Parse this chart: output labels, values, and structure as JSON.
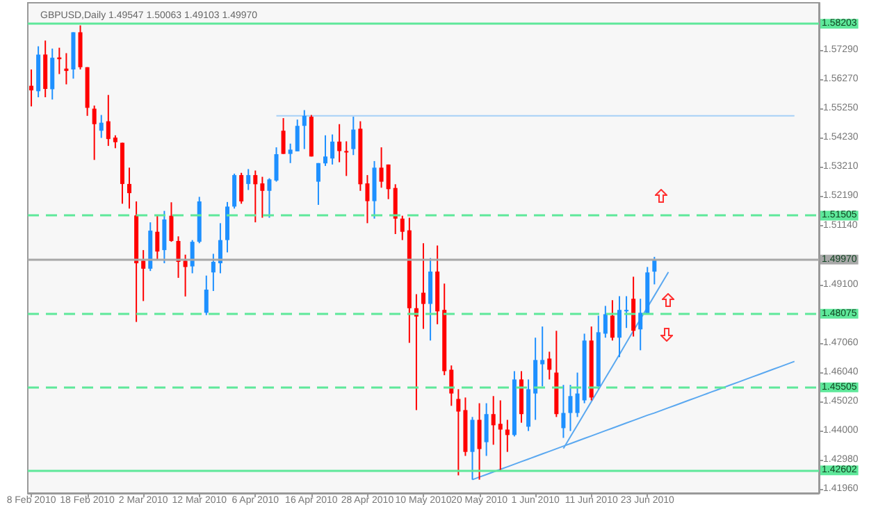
{
  "chart_data": {
    "type": "candlestick",
    "title": "GBPUSD,Daily 1.49547 1.50063 1.49103 1.49970",
    "categories": [
      "8 Feb 2010",
      null,
      null,
      null,
      null,
      null,
      null,
      null,
      "18 Feb 2010",
      null,
      null,
      null,
      null,
      null,
      null,
      null,
      "2 Mar 2010",
      null,
      null,
      null,
      null,
      null,
      null,
      null,
      "12 Mar 2010",
      null,
      null,
      null,
      null,
      null,
      null,
      null,
      "6 Apr 2010",
      null,
      null,
      null,
      null,
      null,
      null,
      null,
      "16 Apr 2010",
      null,
      null,
      null,
      null,
      null,
      null,
      null,
      "28 Apr 2010",
      null,
      null,
      null,
      null,
      null,
      null,
      null,
      "10 May 2010",
      null,
      null,
      null,
      null,
      null,
      null,
      null,
      "20 May 2010",
      null,
      null,
      null,
      null,
      null,
      null,
      null,
      "1 Jun 2010",
      null,
      null,
      null,
      null,
      null,
      null,
      null,
      "11 Jun 2010",
      null,
      null,
      null,
      null,
      null,
      null,
      null,
      "23 Jun 2010",
      null,
      null,
      null,
      null,
      null,
      null,
      null,
      null,
      null,
      null,
      null,
      null,
      null,
      null,
      null,
      null,
      null,
      null,
      null,
      null,
      null,
      null,
      null,
      null
    ],
    "ohlc": [
      [
        1.5604,
        1.5661,
        1.5532,
        1.5588
      ],
      [
        1.5585,
        1.5742,
        1.5564,
        1.5713
      ],
      [
        1.5713,
        1.5762,
        1.5564,
        1.5593
      ],
      [
        1.5592,
        1.5734,
        1.5556,
        1.5702
      ],
      [
        1.5703,
        1.5737,
        1.5645,
        1.5697
      ],
      [
        1.5664,
        1.5718,
        1.5609,
        1.5656
      ],
      [
        1.5661,
        1.5791,
        1.5629,
        1.5791
      ],
      [
        1.5791,
        1.5815,
        1.5661,
        1.5669
      ],
      [
        1.5669,
        1.5669,
        1.5499,
        1.5527
      ],
      [
        1.5524,
        1.5535,
        1.5345,
        1.547
      ],
      [
        1.5447,
        1.5502,
        1.5422,
        1.5475
      ],
      [
        1.548,
        1.5572,
        1.5394,
        1.5418
      ],
      [
        1.5423,
        1.5431,
        1.5386,
        1.5407
      ],
      [
        1.5405,
        1.5405,
        1.5192,
        1.5261
      ],
      [
        1.5261,
        1.5318,
        1.5175,
        1.5229
      ],
      [
        1.5151,
        1.52,
        1.4779,
        1.4984
      ],
      [
        1.4993,
        1.503,
        1.4852,
        1.4965
      ],
      [
        1.4965,
        1.5127,
        1.4957,
        1.5098
      ],
      [
        1.5094,
        1.5151,
        1.4997,
        1.5025
      ],
      [
        1.503,
        1.5167,
        1.4984,
        1.5137
      ],
      [
        1.515,
        1.5197,
        1.5059,
        1.5062
      ],
      [
        1.5062,
        1.5078,
        1.4933,
        1.4989
      ],
      [
        1.4993,
        1.5014,
        1.4868,
        1.4971
      ],
      [
        1.4973,
        1.5065,
        1.4949,
        1.5059
      ],
      [
        1.5059,
        1.5216,
        1.5054,
        1.52
      ],
      [
        1.4811,
        1.4941,
        1.4803,
        1.4892
      ],
      [
        1.4952,
        1.5017,
        1.4887,
        1.4989
      ],
      [
        1.4984,
        1.5124,
        1.4949,
        1.5065
      ],
      [
        1.5065,
        1.5198,
        1.5022,
        1.5182
      ],
      [
        1.5182,
        1.5297,
        1.5175,
        1.5292
      ],
      [
        1.5292,
        1.53,
        1.5192,
        1.52
      ],
      [
        1.5261,
        1.5313,
        1.524,
        1.5292
      ],
      [
        1.5292,
        1.5308,
        1.5127,
        1.526
      ],
      [
        1.5263,
        1.5286,
        1.5143,
        1.5237
      ],
      [
        1.5237,
        1.5281,
        1.5143,
        1.5277
      ],
      [
        1.5273,
        1.5389,
        1.5269,
        1.5365
      ],
      [
        1.5447,
        1.5491,
        1.5366,
        1.5366
      ],
      [
        1.5366,
        1.5402,
        1.5334,
        1.5381
      ],
      [
        1.5375,
        1.5486,
        1.5375,
        1.5464
      ],
      [
        1.5464,
        1.5519,
        1.5383,
        1.5499
      ],
      [
        1.5496,
        1.5502,
        1.5357,
        1.5357
      ],
      [
        1.5269,
        1.5334,
        1.5188,
        1.5334
      ],
      [
        1.5333,
        1.5431,
        1.5324,
        1.5357
      ],
      [
        1.535,
        1.5434,
        1.5329,
        1.5409
      ],
      [
        1.5409,
        1.547,
        1.5337,
        1.5376
      ],
      [
        1.5376,
        1.541,
        1.5289,
        1.5373
      ],
      [
        1.5383,
        1.5496,
        1.5362,
        1.5451
      ],
      [
        1.5454,
        1.548,
        1.5237,
        1.526
      ],
      [
        1.5263,
        1.5292,
        1.5124,
        1.5201
      ],
      [
        1.5201,
        1.5341,
        1.514,
        1.5318
      ],
      [
        1.5318,
        1.5389,
        1.5248,
        1.5269
      ],
      [
        1.5329,
        1.5329,
        1.5208,
        1.5243
      ],
      [
        1.5247,
        1.526,
        1.5086,
        1.514
      ],
      [
        1.514,
        1.515,
        1.5065,
        1.5094
      ],
      [
        1.5099,
        1.5143,
        1.4706,
        1.4827
      ],
      [
        1.4827,
        1.4876,
        1.4471,
        1.4798
      ],
      [
        1.4881,
        1.5054,
        1.4755,
        1.4842
      ],
      [
        1.4842,
        1.5002,
        1.4714,
        1.4955
      ],
      [
        1.4955,
        1.5046,
        1.4771,
        1.4816
      ],
      [
        1.4821,
        1.4913,
        1.4593,
        1.4607
      ],
      [
        1.4612,
        1.4627,
        1.4486,
        1.4529
      ],
      [
        1.451,
        1.4544,
        1.4243,
        1.4466
      ],
      [
        1.4471,
        1.4515,
        1.4311,
        1.4325
      ],
      [
        1.4325,
        1.4447,
        1.4228,
        1.4437
      ],
      [
        1.4437,
        1.4495,
        1.4228,
        1.4335
      ],
      [
        1.4359,
        1.4495,
        1.4311,
        1.4457
      ],
      [
        1.4457,
        1.452,
        1.435,
        1.4418
      ],
      [
        1.4423,
        1.4505,
        1.4257,
        1.4403
      ],
      [
        1.4403,
        1.4437,
        1.4325,
        1.4384
      ],
      [
        1.4384,
        1.4607,
        1.4379,
        1.4578
      ],
      [
        1.4578,
        1.4607,
        1.4427,
        1.4457
      ],
      [
        1.4413,
        1.4578,
        1.4398,
        1.4544
      ],
      [
        1.4529,
        1.4724,
        1.4437,
        1.4646
      ],
      [
        1.4631,
        1.4763,
        1.4554,
        1.4646
      ],
      [
        1.4651,
        1.4675,
        1.4578,
        1.4612
      ],
      [
        1.4602,
        1.4748,
        1.4447,
        1.4457
      ],
      [
        1.4408,
        1.4559,
        1.4374,
        1.4461
      ],
      [
        1.4461,
        1.4559,
        1.4398,
        1.452
      ],
      [
        1.4461,
        1.4602,
        1.4447,
        1.4529
      ],
      [
        1.4505,
        1.4738,
        1.4495,
        1.4714
      ],
      [
        1.4714,
        1.4763,
        1.4505,
        1.4515
      ],
      [
        1.4554,
        1.4801,
        1.4544,
        1.4743
      ],
      [
        1.4738,
        1.4835,
        1.4724,
        1.4806
      ],
      [
        1.4801,
        1.4855,
        1.4714,
        1.4724
      ],
      [
        1.4724,
        1.4869,
        1.4656,
        1.4821
      ],
      [
        1.4816,
        1.4869,
        1.4758,
        1.4821
      ],
      [
        1.486,
        1.4937,
        1.4728,
        1.4748
      ],
      [
        1.4753,
        1.486,
        1.468,
        1.4811
      ],
      [
        1.4806,
        1.4971,
        1.4806,
        1.4952
      ],
      [
        1.49547,
        1.50063,
        1.49103,
        1.4997
      ],
      null,
      null,
      null,
      null,
      null,
      null,
      null,
      null,
      null,
      null,
      null,
      null,
      null,
      null,
      null,
      null,
      null,
      null,
      null,
      null,
      null,
      null,
      null
    ],
    "colors": [
      "#ff0000",
      "#1e90ff",
      "#ff0000",
      "#1e90ff",
      "#ff0000",
      "#ff0000",
      "#1e90ff",
      "#ff0000",
      "#ff0000",
      "#ff0000",
      "#1e90ff",
      "#ff0000",
      "#ff0000",
      "#ff0000",
      "#ff0000",
      "#ff0000",
      "#ff0000",
      "#1e90ff",
      "#ff0000",
      "#1e90ff",
      "#ff0000",
      "#ff0000",
      "#ff0000",
      "#1e90ff",
      "#1e90ff",
      "#1e90ff",
      "#1e90ff",
      "#1e90ff",
      "#1e90ff",
      "#1e90ff",
      "#ff0000",
      "#1e90ff",
      "#ff0000",
      "#ff0000",
      "#1e90ff",
      "#1e90ff",
      "#ff0000",
      "#1e90ff",
      "#1e90ff",
      "#1e90ff",
      "#ff0000",
      "#1e90ff",
      "#1e90ff",
      "#1e90ff",
      "#ff0000",
      "#ff0000",
      "#1e90ff",
      "#ff0000",
      "#ff0000",
      "#1e90ff",
      "#ff0000",
      "#ff0000",
      "#ff0000",
      "#ff0000",
      "#ff0000",
      "#ff0000",
      "#ff0000",
      "#1e90ff",
      "#ff0000",
      "#ff0000",
      "#ff0000",
      "#ff0000",
      "#ff0000",
      "#1e90ff",
      "#ff0000",
      "#1e90ff",
      "#ff0000",
      "#ff0000",
      "#ff0000",
      "#1e90ff",
      "#ff0000",
      "#1e90ff",
      "#1e90ff",
      "#1e90ff",
      "#ff0000",
      "#ff0000",
      "#1e90ff",
      "#1e90ff",
      "#1e90ff",
      "#1e90ff",
      "#ff0000",
      "#1e90ff",
      "#1e90ff",
      "#ff0000",
      "#1e90ff",
      "#1e90ff",
      "#ff0000",
      "#1e90ff",
      "#1e90ff",
      "#1e90ff",
      null,
      null,
      null,
      null,
      null,
      null,
      null,
      null,
      null,
      null,
      null,
      null,
      null,
      null,
      null,
      null,
      null,
      null,
      null,
      null,
      null,
      null,
      null
    ],
    "ylim": [
      1.4181,
      1.5894
    ],
    "yticks": [
      {
        "value": 1.5729,
        "label": "1.57290"
      },
      {
        "value": 1.5627,
        "label": "1.56270"
      },
      {
        "value": 1.5525,
        "label": "1.55250"
      },
      {
        "value": 1.5423,
        "label": "1.54230"
      },
      {
        "value": 1.5321,
        "label": "1.53210"
      },
      {
        "value": 1.5219,
        "label": "1.52190"
      },
      {
        "value": 1.5114,
        "label": "1.51140"
      },
      {
        "value": 1.491,
        "label": "1.49100"
      },
      {
        "value": 1.4706,
        "label": "1.47060"
      },
      {
        "value": 1.4604,
        "label": "1.46040"
      },
      {
        "value": 1.4502,
        "label": "1.45020"
      },
      {
        "value": 1.44,
        "label": "1.44000"
      },
      {
        "value": 1.4298,
        "label": "1.42980"
      },
      {
        "value": 1.4196,
        "label": "1.41960"
      }
    ],
    "ref_lines": [
      {
        "axis": "y",
        "value": 1.58203,
        "label": "1.58203",
        "color": "#5ee89a",
        "line_style": "solid"
      },
      {
        "axis": "y",
        "value": 1.51505,
        "label": "1.51505",
        "color": "#5ee89a",
        "line_style": "dashed"
      },
      {
        "axis": "y",
        "value": 1.4997,
        "label": "1.49970",
        "color": "#a8a8a8",
        "line_style": "solid"
      },
      {
        "axis": "y",
        "value": 1.48075,
        "label": "1.48075",
        "color": "#5ee89a",
        "line_style": "dashed"
      },
      {
        "axis": "y",
        "value": 1.45505,
        "label": "1.45505",
        "color": "#5ee89a",
        "line_style": "dashed"
      },
      {
        "axis": "y",
        "value": 1.42602,
        "label": "1.42602",
        "color": "#5ee89a",
        "line_style": "solid"
      }
    ],
    "series": [
      {
        "type": "line",
        "values": [
          null,
          null,
          null,
          null,
          null,
          null,
          null,
          null,
          null,
          null,
          null,
          null,
          null,
          null,
          null,
          null,
          null,
          null,
          null,
          null,
          null,
          null,
          null,
          null,
          null,
          null,
          null,
          null,
          null,
          null,
          null,
          null,
          null,
          null,
          null,
          1.5499,
          1.5499,
          1.5499,
          1.5499,
          1.5499,
          1.5499,
          1.5499,
          1.5499,
          1.5499,
          1.5499,
          1.5499,
          1.5499,
          1.5499,
          1.5499,
          1.5499,
          1.5499,
          1.5499,
          1.5499,
          1.5499,
          1.5499,
          1.5499,
          1.5499,
          1.5499,
          1.5499,
          1.5499,
          1.5499,
          1.5499,
          1.5499,
          1.5499,
          1.5499,
          1.5499,
          1.5499,
          1.5499,
          1.5499,
          1.5499,
          1.5499,
          1.5499,
          1.5499,
          1.5499,
          1.5499,
          1.5499,
          1.5499,
          1.5499,
          1.5499,
          1.5499,
          1.5499,
          1.5499,
          1.5499,
          1.5499,
          1.5499,
          1.5499,
          1.5499,
          1.5499,
          1.5499,
          1.5499,
          1.5499,
          1.5499,
          1.5499,
          1.5499,
          1.5499,
          1.5499,
          1.5499,
          1.5499,
          1.5499,
          1.5499,
          1.5499,
          1.5499,
          1.5499,
          1.5499,
          1.5499,
          1.5499,
          1.5499,
          1.5499,
          1.5499,
          1.5499,
          null,
          null,
          null
        ],
        "color": "#a6d0f7"
      },
      {
        "type": "line",
        "values": [
          null,
          null,
          null,
          null,
          null,
          null,
          null,
          null,
          null,
          null,
          null,
          null,
          null,
          null,
          null,
          null,
          null,
          null,
          null,
          null,
          null,
          null,
          null,
          null,
          null,
          null,
          null,
          null,
          null,
          null,
          null,
          null,
          null,
          null,
          null,
          null,
          null,
          null,
          null,
          null,
          null,
          null,
          null,
          null,
          null,
          null,
          null,
          null,
          null,
          null,
          null,
          null,
          null,
          null,
          null,
          null,
          null,
          null,
          null,
          null,
          null,
          null,
          null,
          1.4228,
          1.4237,
          1.4246,
          1.4255,
          1.4264,
          1.4273,
          1.4282,
          1.4291,
          1.43,
          1.4309,
          1.4318,
          1.4327,
          1.4336,
          1.4345,
          1.4354,
          1.4363,
          1.4372,
          1.4381,
          1.439,
          1.4399,
          1.4408,
          1.4417,
          1.4426,
          1.4435,
          1.4444,
          1.4453,
          1.4461,
          1.447,
          1.4479,
          1.4488,
          1.4497,
          1.4506,
          1.4515,
          1.4524,
          1.4533,
          1.4542,
          1.4551,
          1.456,
          1.4569,
          1.4578,
          1.4587,
          1.4596,
          1.4605,
          1.4614,
          1.4623,
          1.4632,
          1.4641,
          null,
          null,
          null
        ],
        "color": "#5aa8f0"
      },
      {
        "type": "line",
        "values": [
          null,
          null,
          null,
          null,
          null,
          null,
          null,
          null,
          null,
          null,
          null,
          null,
          null,
          null,
          null,
          null,
          null,
          null,
          null,
          null,
          null,
          null,
          null,
          null,
          null,
          null,
          null,
          null,
          null,
          null,
          null,
          null,
          null,
          null,
          null,
          null,
          null,
          null,
          null,
          null,
          null,
          null,
          null,
          null,
          null,
          null,
          null,
          null,
          null,
          null,
          null,
          null,
          null,
          null,
          null,
          null,
          null,
          null,
          null,
          null,
          null,
          null,
          null,
          null,
          null,
          null,
          null,
          null,
          null,
          null,
          null,
          null,
          null,
          null,
          null,
          null,
          1.4337,
          1.4378,
          1.4419,
          1.446,
          1.4501,
          1.4542,
          1.4583,
          1.4624,
          1.4665,
          1.4707,
          1.4748,
          1.4789,
          1.483,
          1.4871,
          1.4912,
          1.4953,
          null,
          null,
          null,
          null,
          null,
          null,
          null,
          null,
          null,
          null,
          null,
          null,
          null,
          null,
          null,
          null,
          null,
          null,
          null,
          null,
          null
        ],
        "color": "#5aa8f0"
      }
    ],
    "marker": "none"
  }
}
